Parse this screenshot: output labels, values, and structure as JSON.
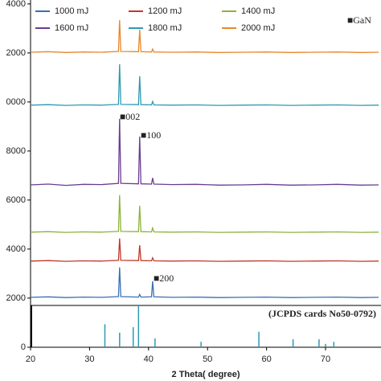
{
  "chart_data": [
    {
      "type": "line",
      "x": [
        20,
        23,
        26,
        29,
        32,
        34.9,
        35.1,
        35.3,
        38.3,
        38.5,
        38.7,
        40.5,
        40.7,
        40.9,
        44,
        48,
        52,
        56,
        60,
        64,
        68,
        72,
        76,
        79
      ],
      "series": [
        {
          "name": "1000 mJ",
          "color": "#3a6fb0",
          "values": [
            2030,
            2050,
            2020,
            2040,
            2030,
            2060,
            3250,
            2060,
            2040,
            2150,
            2040,
            2050,
            2690,
            2050,
            2030,
            2040,
            2020,
            2030,
            2040,
            2020,
            2030,
            2040,
            2020,
            2030
          ]
        },
        {
          "name": "1200 mJ",
          "color": "#c0392b",
          "values": [
            3510,
            3530,
            3500,
            3520,
            3510,
            3540,
            4430,
            3540,
            3530,
            4160,
            3530,
            3520,
            3640,
            3520,
            3510,
            3520,
            3500,
            3510,
            3520,
            3500,
            3510,
            3520,
            3500,
            3510
          ]
        },
        {
          "name": "1400 mJ",
          "color": "#8db33a",
          "values": [
            4690,
            4710,
            4680,
            4700,
            4690,
            4720,
            6200,
            4720,
            4710,
            5770,
            4710,
            4700,
            4860,
            4700,
            4690,
            4700,
            4680,
            4690,
            4700,
            4680,
            4690,
            4700,
            4680,
            4690
          ]
        },
        {
          "name": "1600 mJ",
          "color": "#6a3d8f",
          "values": [
            6620,
            6650,
            6600,
            6640,
            6630,
            6680,
            9310,
            6680,
            6660,
            8590,
            6660,
            6650,
            6900,
            6650,
            6630,
            6640,
            6610,
            6620,
            6640,
            6610,
            6620,
            6640,
            6610,
            6620
          ]
        },
        {
          "name": "1800 mJ",
          "color": "#2e9ab0",
          "values": [
            9870,
            9890,
            9860,
            9880,
            9870,
            9900,
            11540,
            9900,
            9890,
            11050,
            9890,
            9880,
            10020,
            9880,
            9870,
            9880,
            9860,
            9870,
            9880,
            9860,
            9870,
            9880,
            9860,
            9870
          ]
        },
        {
          "name": "2000 mJ",
          "color": "#e8862a",
          "values": [
            12030,
            12050,
            12020,
            12040,
            12030,
            12060,
            13340,
            12060,
            12050,
            12950,
            12050,
            12040,
            12160,
            12040,
            12030,
            12040,
            12020,
            12030,
            12040,
            12020,
            12030,
            12040,
            12020,
            12030
          ]
        }
      ],
      "xlim": [
        20,
        79.4
      ],
      "ylim": [
        1700,
        14160
      ],
      "yticks": [
        2000,
        4000,
        6000,
        8000,
        {
          "value": 10000,
          "label": "0000"
        },
        {
          "value": 12000,
          "label": "2000"
        },
        {
          "value": 14000,
          "label": "4000"
        }
      ],
      "annotations": [
        "■GaN",
        "■002",
        "■100",
        "■200"
      ]
    },
    {
      "type": "stick",
      "x": [
        32.6,
        35.1,
        37.4,
        38.3,
        41.1,
        48.9,
        58.7,
        64.5,
        68.9,
        70,
        71.4
      ],
      "values": [
        55,
        35,
        48,
        100,
        21,
        13,
        37,
        19,
        19,
        8,
        13
      ],
      "color": "#2e9ab0",
      "xlim": [
        20,
        79.4
      ],
      "ylim": [
        0,
        100
      ],
      "yticks": [
        0
      ],
      "xticks": [
        20,
        30,
        40,
        50,
        60,
        70
      ],
      "annotations": [
        "(JCPDS cards No50-0792)"
      ],
      "x_label": "2 Theta( degree)"
    }
  ]
}
